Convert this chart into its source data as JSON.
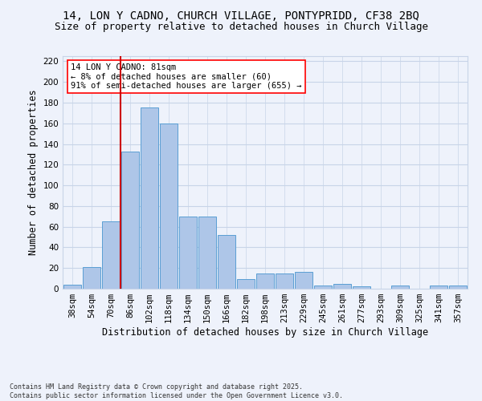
{
  "title_line1": "14, LON Y CADNO, CHURCH VILLAGE, PONTYPRIDD, CF38 2BQ",
  "title_line2": "Size of property relative to detached houses in Church Village",
  "xlabel": "Distribution of detached houses by size in Church Village",
  "ylabel": "Number of detached properties",
  "bins": [
    "38sqm",
    "54sqm",
    "70sqm",
    "86sqm",
    "102sqm",
    "118sqm",
    "134sqm",
    "150sqm",
    "166sqm",
    "182sqm",
    "198sqm",
    "213sqm",
    "229sqm",
    "245sqm",
    "261sqm",
    "277sqm",
    "293sqm",
    "309sqm",
    "325sqm",
    "341sqm",
    "357sqm"
  ],
  "bar_values": [
    4,
    21,
    65,
    133,
    175,
    160,
    70,
    70,
    52,
    9,
    15,
    15,
    16,
    3,
    5,
    2,
    0,
    3,
    0,
    3,
    3
  ],
  "bar_color": "#aec6e8",
  "bar_edge_color": "#5a9fd4",
  "vline_color": "#cc0000",
  "ylim": [
    0,
    225
  ],
  "yticks": [
    0,
    20,
    40,
    60,
    80,
    100,
    120,
    140,
    160,
    180,
    200,
    220
  ],
  "annotation_box_text": "14 LON Y CADNO: 81sqm\n← 8% of detached houses are smaller (60)\n91% of semi-detached houses are larger (655) →",
  "footer_line1": "Contains HM Land Registry data © Crown copyright and database right 2025.",
  "footer_line2": "Contains public sector information licensed under the Open Government Licence v3.0.",
  "bg_color": "#eef2fb",
  "grid_color": "#c8d4e8",
  "title_fontsize": 10,
  "subtitle_fontsize": 9,
  "axis_label_fontsize": 8.5,
  "tick_fontsize": 7.5,
  "annotation_fontsize": 7.5,
  "footer_fontsize": 6.0
}
